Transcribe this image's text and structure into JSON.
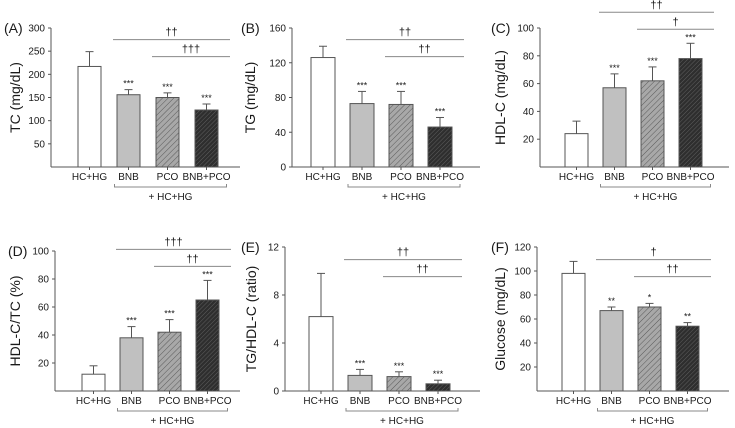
{
  "figure": {
    "categories": [
      "HC+HG",
      "BNB",
      "PCO",
      "BNB+PCO"
    ],
    "group_label": "+ HC+HG",
    "bar_styles": [
      {
        "name": "HC+HG",
        "fill": "#ffffff",
        "pattern": "none"
      },
      {
        "name": "BNB",
        "fill": "#c0c0c0",
        "pattern": "none"
      },
      {
        "name": "PCO",
        "fill": "#a8a8a8",
        "pattern": "hatch-light"
      },
      {
        "name": "BNB+PCO",
        "fill": "#3a3a3a",
        "pattern": "hatch-dark"
      }
    ],
    "colors": {
      "axis": "#555555",
      "bar_edge": "#555555",
      "text": "#1a1a1a",
      "bracket": "#888888"
    }
  },
  "chart_data": [
    {
      "type": "bar",
      "panel": "(A)",
      "ylabel": "TC (mg/dL)",
      "categories": [
        "HC+HG",
        "BNB",
        "PCO",
        "BNB+PCO"
      ],
      "values": [
        217,
        156,
        150,
        123
      ],
      "errors": [
        32,
        11,
        10,
        13
      ],
      "significance": [
        "",
        "***",
        "***",
        "***"
      ],
      "ylim": [
        0,
        300
      ],
      "yticks": [
        50,
        100,
        150,
        200,
        250,
        300
      ],
      "comparisons": [
        {
          "from": "BNB",
          "to": "BNB+PCO",
          "label": "††"
        },
        {
          "from": "PCO",
          "to": "BNB+PCO",
          "label": "†††"
        }
      ]
    },
    {
      "type": "bar",
      "panel": "(B)",
      "ylabel": "TG (mg/dL)",
      "categories": [
        "HC+HG",
        "BNB",
        "PCO",
        "BNB+PCO"
      ],
      "values": [
        126,
        73,
        72,
        46
      ],
      "errors": [
        13,
        14,
        15,
        11
      ],
      "significance": [
        "",
        "***",
        "***",
        "***"
      ],
      "ylim": [
        0,
        160
      ],
      "yticks": [
        0,
        40,
        80,
        120,
        160
      ],
      "comparisons": [
        {
          "from": "BNB",
          "to": "BNB+PCO",
          "label": "††"
        },
        {
          "from": "PCO",
          "to": "BNB+PCO",
          "label": "††"
        }
      ]
    },
    {
      "type": "bar",
      "panel": "(C)",
      "ylabel": "HDL-C (mg/dL)",
      "categories": [
        "HC+HG",
        "BNB",
        "PCO",
        "BNB+PCO"
      ],
      "values": [
        24,
        57,
        62,
        78
      ],
      "errors": [
        9,
        10,
        10,
        11
      ],
      "significance": [
        "",
        "***",
        "***",
        "***"
      ],
      "ylim": [
        0,
        100
      ],
      "yticks": [
        20,
        40,
        60,
        80,
        100
      ],
      "comparisons": [
        {
          "from": "BNB",
          "to": "BNB+PCO",
          "label": "††"
        },
        {
          "from": "PCO",
          "to": "BNB+PCO",
          "label": "†"
        }
      ]
    },
    {
      "type": "bar",
      "panel": "(D)",
      "ylabel": "HDL-C/TC (%)",
      "categories": [
        "HC+HG",
        "BNB",
        "PCO",
        "BNB+PCO"
      ],
      "values": [
        12,
        38,
        42,
        65
      ],
      "errors": [
        6,
        8,
        9,
        14
      ],
      "significance": [
        "",
        "***",
        "***",
        "***"
      ],
      "ylim": [
        0,
        100
      ],
      "yticks": [
        20,
        40,
        60,
        80,
        100
      ],
      "comparisons": [
        {
          "from": "BNB",
          "to": "BNB+PCO",
          "label": "†††"
        },
        {
          "from": "PCO",
          "to": "BNB+PCO",
          "label": "††"
        }
      ]
    },
    {
      "type": "bar",
      "panel": "(E)",
      "ylabel": "TG/HDL-C (ratio)",
      "categories": [
        "HC+HG",
        "BNB",
        "PCO",
        "BNB+PCO"
      ],
      "values": [
        6.2,
        1.3,
        1.2,
        0.6
      ],
      "errors": [
        3.6,
        0.5,
        0.4,
        0.3
      ],
      "significance": [
        "",
        "***",
        "***",
        "***"
      ],
      "ylim": [
        0,
        12
      ],
      "yticks": [
        0,
        4,
        8,
        12
      ],
      "comparisons": [
        {
          "from": "BNB",
          "to": "BNB+PCO",
          "label": "††"
        },
        {
          "from": "PCO",
          "to": "BNB+PCO",
          "label": "††"
        }
      ]
    },
    {
      "type": "bar",
      "panel": "(F)",
      "ylabel": "Glucose (mg/dL)",
      "categories": [
        "HC+HG",
        "BNB",
        "PCO",
        "BNB+PCO"
      ],
      "values": [
        98,
        67,
        70,
        54
      ],
      "errors": [
        10,
        3,
        3,
        3
      ],
      "significance": [
        "",
        "**",
        "*",
        "**"
      ],
      "ylim": [
        0,
        120
      ],
      "yticks": [
        20,
        40,
        60,
        80,
        100,
        120
      ],
      "comparisons": [
        {
          "from": "BNB",
          "to": "BNB+PCO",
          "label": "†"
        },
        {
          "from": "PCO",
          "to": "BNB+PCO",
          "label": "††"
        }
      ]
    }
  ]
}
